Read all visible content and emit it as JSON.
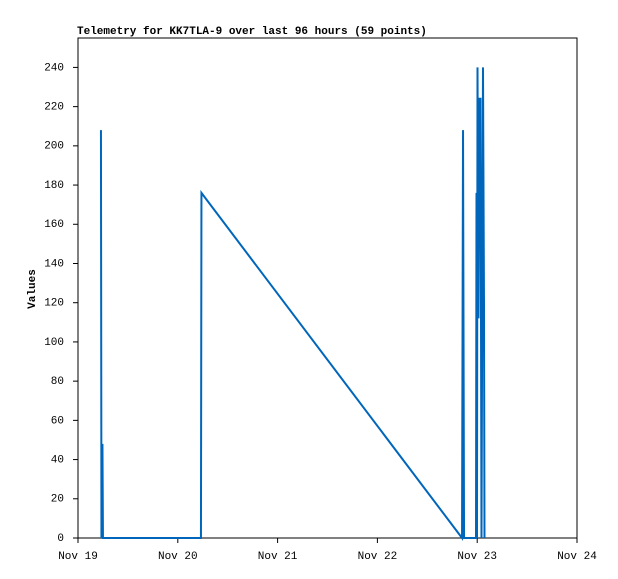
{
  "chart_data": {
    "type": "line",
    "title": "Telemetry for KK7TLA-9 over last 96 hours (59 points)",
    "y_label": "Values",
    "x": [
      0.23,
      0.235,
      0.245,
      0.25,
      1.232,
      1.237,
      3.848,
      3.858,
      3.868,
      3.988,
      3.993,
      3.998,
      4.003,
      4.013,
      4.023,
      4.033,
      4.043,
      4.058,
      4.068,
      4.073
    ],
    "series": [
      {
        "color": "#0066bb",
        "values": [
          208,
          0,
          48,
          0,
          0,
          176,
          0,
          208,
          0,
          0,
          176,
          0,
          240,
          112,
          224,
          224,
          0,
          240,
          120,
          0
        ]
      }
    ],
    "xlim": [
      0,
      5
    ],
    "xticks": [
      {
        "value": 0,
        "label": "Nov 19"
      },
      {
        "value": 1,
        "label": "Nov 20"
      },
      {
        "value": 2,
        "label": "Nov 21"
      },
      {
        "value": 3,
        "label": "Nov 22"
      },
      {
        "value": 4,
        "label": "Nov 23"
      },
      {
        "value": 5,
        "label": "Nov 24"
      }
    ],
    "ylim": [
      0,
      255
    ],
    "yticks": [
      0,
      20,
      40,
      60,
      80,
      100,
      120,
      140,
      160,
      180,
      200,
      220,
      240
    ],
    "grid": false
  }
}
